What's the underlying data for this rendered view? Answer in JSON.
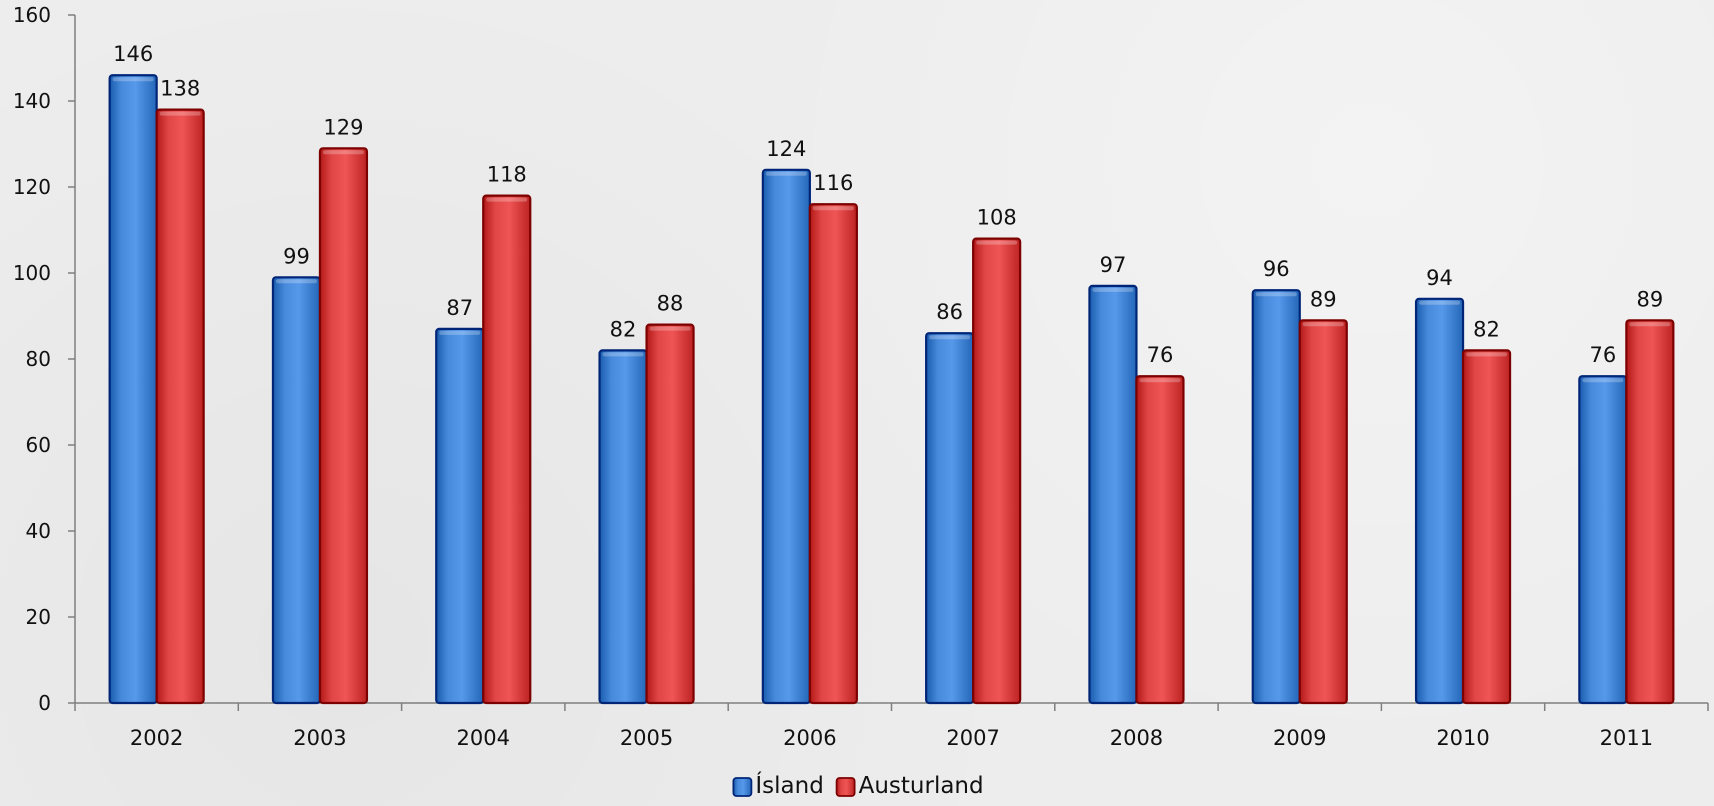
{
  "chart_data": {
    "type": "bar",
    "categories": [
      "2002",
      "2003",
      "2004",
      "2005",
      "2006",
      "2007",
      "2008",
      "2009",
      "2010",
      "2011"
    ],
    "series": [
      {
        "name": "Ísland",
        "color": "#3d7fd1",
        "values": [
          146,
          99,
          87,
          82,
          124,
          86,
          97,
          96,
          94,
          76
        ]
      },
      {
        "name": "Austurland",
        "color": "#d63c3c",
        "values": [
          138,
          129,
          118,
          88,
          116,
          108,
          76,
          89,
          82,
          89
        ]
      }
    ],
    "ylim": [
      0,
      160
    ],
    "yticks": [
      0,
      20,
      40,
      60,
      80,
      100,
      120,
      140,
      160
    ],
    "title": "",
    "xlabel": "",
    "ylabel": "",
    "grid": false,
    "legend_position": "bottom-center",
    "data_labels": true
  }
}
